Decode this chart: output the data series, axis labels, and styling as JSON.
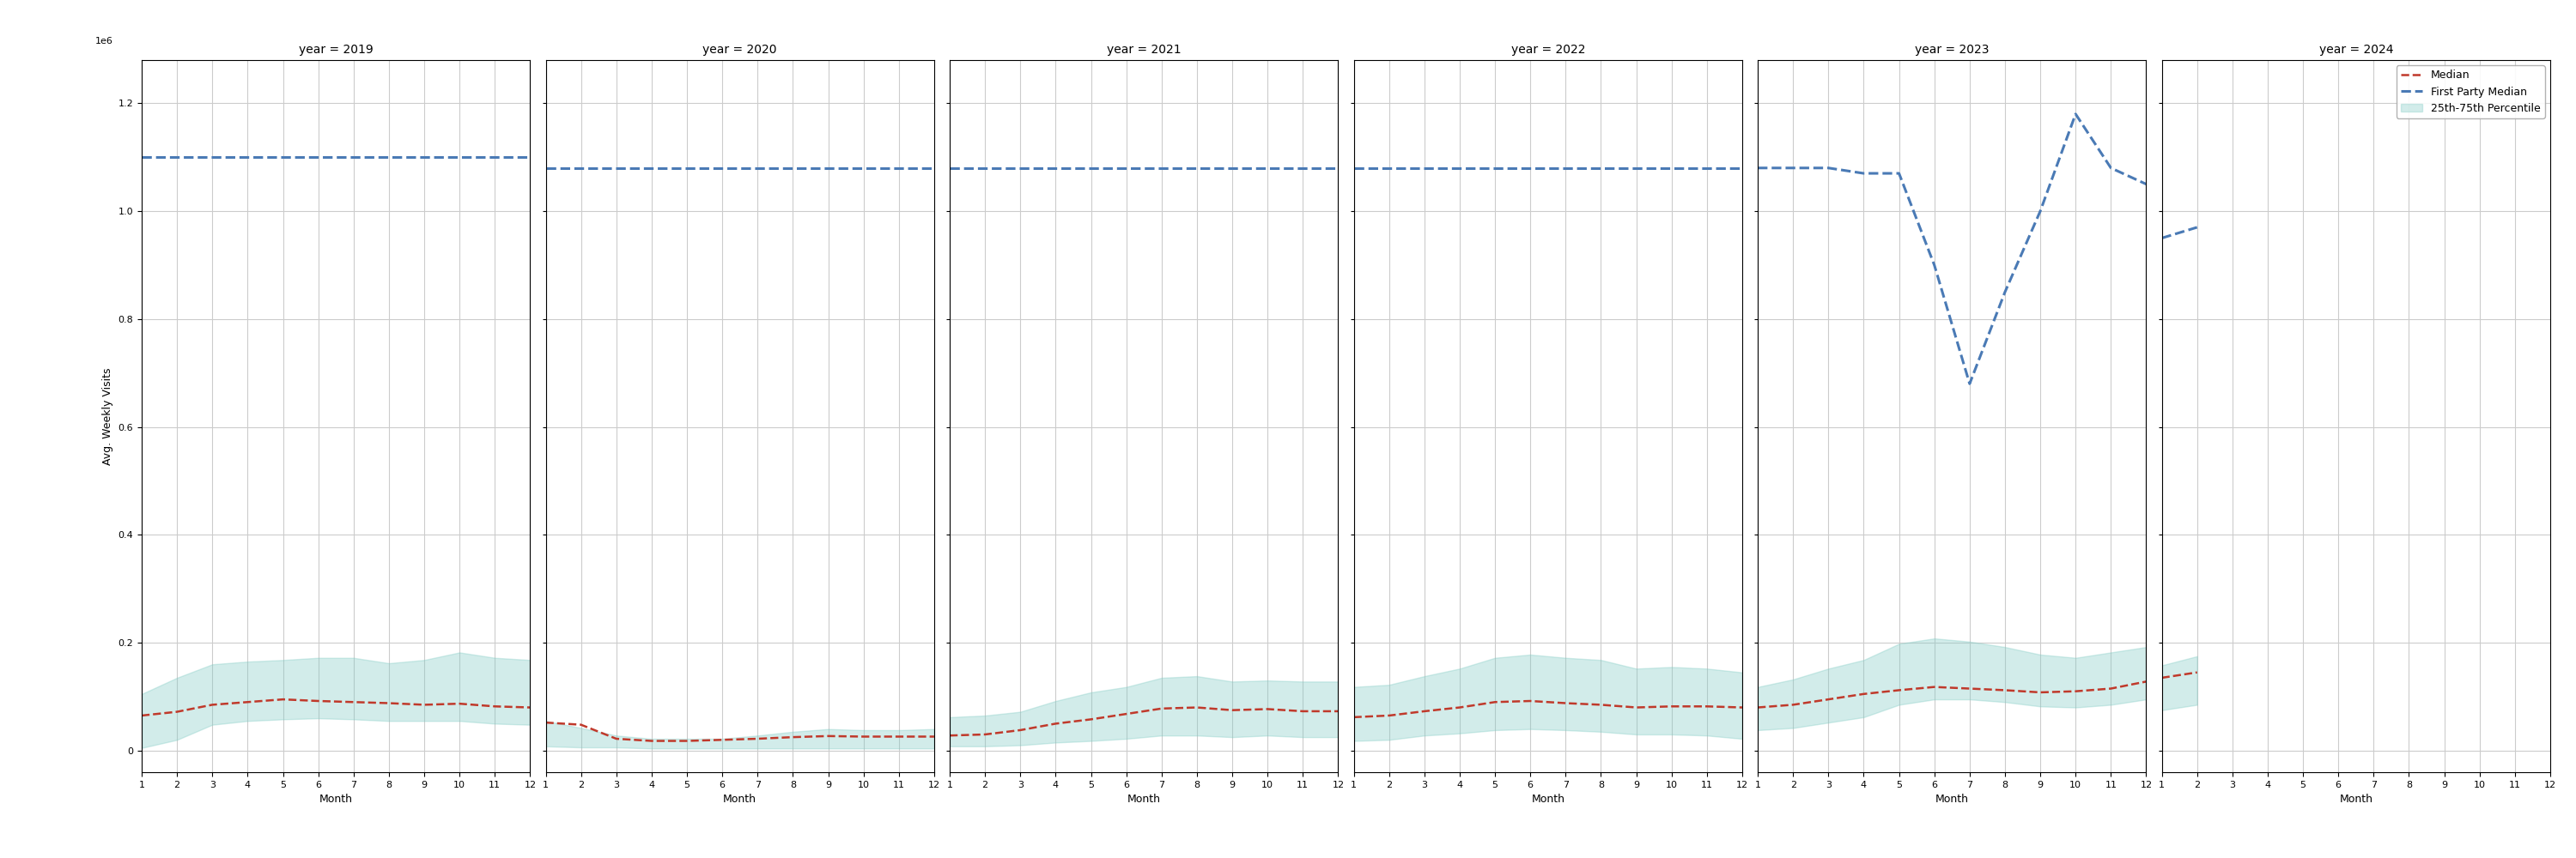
{
  "years": [
    2019,
    2020,
    2021,
    2022,
    2023,
    2024
  ],
  "ylim": [
    -40000.0,
    1280000.0
  ],
  "yticks": [
    0,
    200000.0,
    400000.0,
    600000.0,
    800000.0,
    1000000.0,
    1200000.0
  ],
  "ylabel": "Avg. Weekly Visits",
  "xlabel": "Month",
  "background_color": "#ffffff",
  "grid_color": "#cccccc",
  "median_color": "#c0392b",
  "fp_median_color": "#4a7ab5",
  "fill_color": "#80cbc4",
  "fill_alpha": 0.35,
  "legend_labels": [
    "Median",
    "First Party Median",
    "25th-75th Percentile"
  ],
  "months_full": [
    1,
    2,
    3,
    4,
    5,
    6,
    7,
    8,
    9,
    10,
    11,
    12
  ],
  "months_2024": [
    1,
    2
  ],
  "red_median": {
    "2019": [
      0.065,
      0.072,
      0.085,
      0.09,
      0.095,
      0.092,
      0.09,
      0.088,
      0.085,
      0.087,
      0.082,
      0.08
    ],
    "2020": [
      0.052,
      0.048,
      0.022,
      0.018,
      0.018,
      0.02,
      0.022,
      0.025,
      0.027,
      0.026,
      0.026,
      0.026
    ],
    "2021": [
      0.028,
      0.03,
      0.038,
      0.05,
      0.058,
      0.068,
      0.078,
      0.08,
      0.075,
      0.077,
      0.073,
      0.073
    ],
    "2022": [
      0.062,
      0.065,
      0.073,
      0.08,
      0.09,
      0.092,
      0.088,
      0.085,
      0.08,
      0.082,
      0.082,
      0.08
    ],
    "2023": [
      0.08,
      0.085,
      0.095,
      0.105,
      0.112,
      0.118,
      0.115,
      0.112,
      0.108,
      0.11,
      0.115,
      0.128
    ],
    "2024": [
      0.135,
      0.145
    ]
  },
  "fill_lower": {
    "2019": [
      0.005,
      0.02,
      0.048,
      0.055,
      0.058,
      0.06,
      0.058,
      0.055,
      0.055,
      0.055,
      0.05,
      0.048
    ],
    "2020": [
      0.008,
      0.006,
      0.006,
      0.004,
      0.004,
      0.004,
      0.004,
      0.004,
      0.004,
      0.004,
      0.004,
      0.004
    ],
    "2021": [
      0.008,
      0.008,
      0.01,
      0.015,
      0.018,
      0.022,
      0.028,
      0.028,
      0.025,
      0.028,
      0.025,
      0.025
    ],
    "2022": [
      0.018,
      0.02,
      0.028,
      0.032,
      0.038,
      0.04,
      0.038,
      0.035,
      0.03,
      0.03,
      0.028,
      0.022
    ],
    "2023": [
      0.038,
      0.042,
      0.052,
      0.062,
      0.085,
      0.095,
      0.095,
      0.09,
      0.082,
      0.08,
      0.085,
      0.095
    ],
    "2024": [
      0.075,
      0.085
    ]
  },
  "fill_upper": {
    "2019": [
      0.105,
      0.135,
      0.16,
      0.165,
      0.168,
      0.172,
      0.172,
      0.162,
      0.168,
      0.182,
      0.172,
      0.168
    ],
    "2020": [
      0.055,
      0.042,
      0.028,
      0.022,
      0.022,
      0.022,
      0.028,
      0.035,
      0.04,
      0.038,
      0.038,
      0.04
    ],
    "2021": [
      0.062,
      0.065,
      0.072,
      0.092,
      0.108,
      0.118,
      0.135,
      0.138,
      0.128,
      0.13,
      0.128,
      0.128
    ],
    "2022": [
      0.118,
      0.122,
      0.138,
      0.152,
      0.172,
      0.178,
      0.172,
      0.168,
      0.152,
      0.155,
      0.152,
      0.145
    ],
    "2023": [
      0.118,
      0.132,
      0.152,
      0.168,
      0.198,
      0.208,
      0.202,
      0.192,
      0.178,
      0.172,
      0.182,
      0.192
    ],
    "2024": [
      0.158,
      0.175
    ]
  },
  "fp_median": {
    "2019": [
      1.1,
      1.1,
      1.1,
      1.1,
      1.1,
      1.1,
      1.1,
      1.1,
      1.1,
      1.1,
      1.1,
      1.1
    ],
    "2020": [
      1.08,
      1.08,
      1.08,
      1.08,
      1.08,
      1.08,
      1.08,
      1.08,
      1.08,
      1.08,
      1.08,
      1.08
    ],
    "2021": [
      1.08,
      1.08,
      1.08,
      1.08,
      1.08,
      1.08,
      1.08,
      1.08,
      1.08,
      1.08,
      1.08,
      1.08
    ],
    "2022": [
      1.08,
      1.08,
      1.08,
      1.08,
      1.08,
      1.08,
      1.08,
      1.08,
      1.08,
      1.08,
      1.08,
      1.08
    ],
    "2023": [
      1.08,
      1.08,
      1.08,
      1.07,
      1.07,
      0.9,
      0.68,
      0.85,
      1.0,
      1.18,
      1.08,
      1.05
    ],
    "2024": [
      0.95,
      0.97
    ]
  },
  "title_fontsize": 10,
  "label_fontsize": 9,
  "tick_fontsize": 8,
  "subtitle_fontsize": 10
}
